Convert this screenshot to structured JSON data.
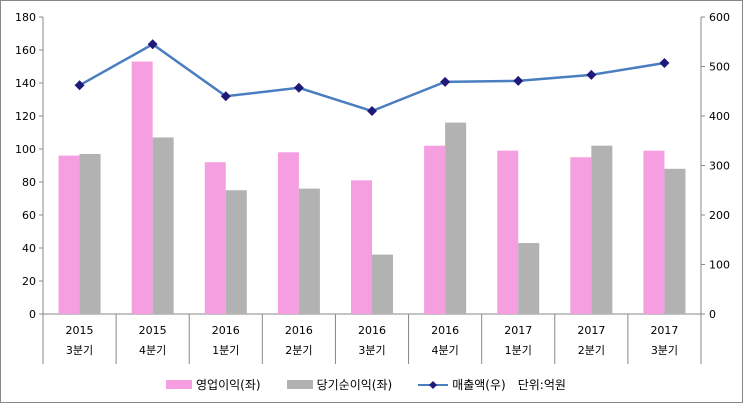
{
  "chart_data": {
    "type": "bar",
    "categories": [
      [
        "2015",
        "3분기"
      ],
      [
        "2015",
        "4분기"
      ],
      [
        "2016",
        "1분기"
      ],
      [
        "2016",
        "2분기"
      ],
      [
        "2016",
        "3분기"
      ],
      [
        "2016",
        "4분기"
      ],
      [
        "2017",
        "1분기"
      ],
      [
        "2017",
        "2분기"
      ],
      [
        "2017",
        "3분기"
      ]
    ],
    "series": [
      {
        "name": "영업이익(좌)",
        "type": "bar",
        "axis": "left",
        "color": "#f59fe0",
        "values": [
          96,
          153,
          92,
          98,
          81,
          102,
          99,
          95,
          99
        ]
      },
      {
        "name": "당기순이익(좌)",
        "type": "bar",
        "axis": "left",
        "color": "#b2b2b2",
        "values": [
          97,
          107,
          75,
          76,
          36,
          116,
          43,
          102,
          88
        ]
      },
      {
        "name": "매출액(우)",
        "type": "line",
        "axis": "right",
        "color": "#4a7ec0",
        "marker_color": "#1f1a7a",
        "values": [
          462,
          545,
          440,
          457,
          410,
          469,
          471,
          483,
          507
        ]
      }
    ],
    "ylim_left": [
      0,
      180
    ],
    "yticks_left": [
      0,
      20,
      40,
      60,
      80,
      100,
      120,
      140,
      160,
      180
    ],
    "ylim_right": [
      0,
      600
    ],
    "yticks_right": [
      0,
      100,
      200,
      300,
      400,
      500,
      600
    ],
    "unit_note": "단위:억원",
    "legend": "bottom"
  }
}
